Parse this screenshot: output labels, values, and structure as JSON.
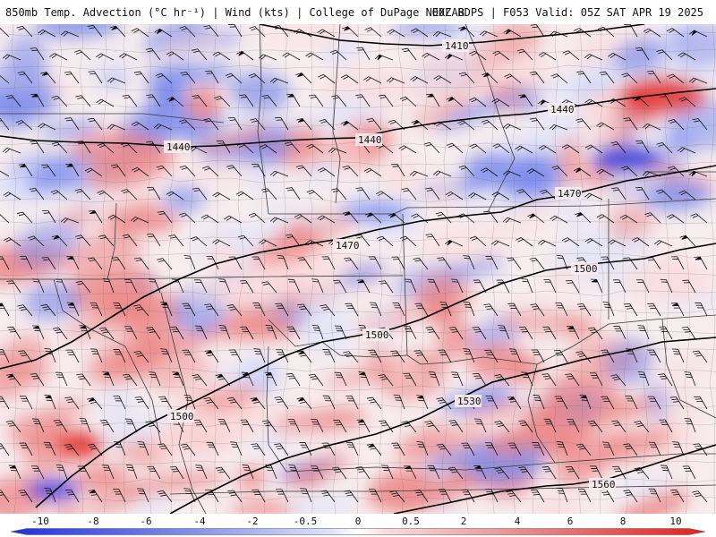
{
  "header": {
    "title_left": "850mb Temp. Advection (°C hr⁻¹) | Wind (kts) | College of DuPage NEXLAB",
    "title_right": "00Z RDPS | F053 Valid: 05Z SAT APR 19 2025"
  },
  "legend": {
    "labels": [
      "-10",
      "-8",
      "-6",
      "-4",
      "-2",
      "-0.5",
      "0",
      "0.5",
      "2",
      "4",
      "6",
      "8",
      "10"
    ],
    "colors": {
      "cold_extreme": "#1f2fe0",
      "cold_mid": "#7d8cec",
      "cold_light": "#dfe3fb",
      "neutral": "#ffffff",
      "warm_light": "#fbdcdc",
      "warm_mid": "#ec8585",
      "warm_extreme": "#e3201b"
    }
  },
  "map": {
    "contours": [
      {
        "level": "1410",
        "labels": [
          "1410"
        ]
      },
      {
        "level": "1440",
        "labels": [
          "1440",
          "1440",
          "1440"
        ]
      },
      {
        "level": "1470",
        "labels": [
          "1470",
          "1470"
        ]
      },
      {
        "level": "1500",
        "labels": [
          "1500",
          "1500",
          "1500"
        ]
      },
      {
        "level": "1530",
        "labels": [
          "1530"
        ]
      },
      {
        "level": "1560",
        "labels": [
          "1560"
        ]
      }
    ]
  }
}
